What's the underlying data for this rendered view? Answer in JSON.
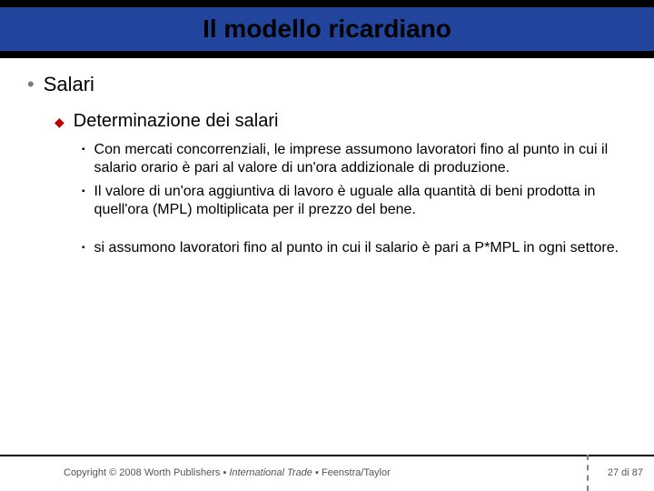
{
  "header": {
    "title": "Il modello ricardiano",
    "background_color": "#21449c",
    "border_color": "#000000"
  },
  "content": {
    "level1": {
      "bullet": "•",
      "text": "Salari"
    },
    "level2": {
      "bullet": "◆",
      "text": "Determinazione dei salari"
    },
    "level3": [
      {
        "bullet": "▪",
        "text": "Con mercati concorrenziali, le imprese assumono lavoratori fino al punto in cui il salario orario è pari al valore di un'ora addizionale di produzione."
      },
      {
        "bullet": "▪",
        "text": "Il valore di un'ora aggiuntiva di lavoro è uguale alla quantità di beni prodotta in quell'ora (MPL) moltiplicata per il prezzo del bene."
      },
      {
        "bullet": "▪",
        "text": "si assumono lavoratori fino al punto in cui il salario è pari a P*MPL in ogni settore."
      }
    ]
  },
  "footer": {
    "copyright_prefix": "Copyright © 2008 Worth Publishers ",
    "sep": "▪",
    "title_italic": " International Trade ",
    "authors": " Feenstra/Taylor",
    "page": "27 di 87"
  },
  "colors": {
    "bullet1": "#7a7a7a",
    "bullet2": "#c00000",
    "bullet3": "#000000",
    "text": "#000000",
    "footer_text": "#555555"
  }
}
